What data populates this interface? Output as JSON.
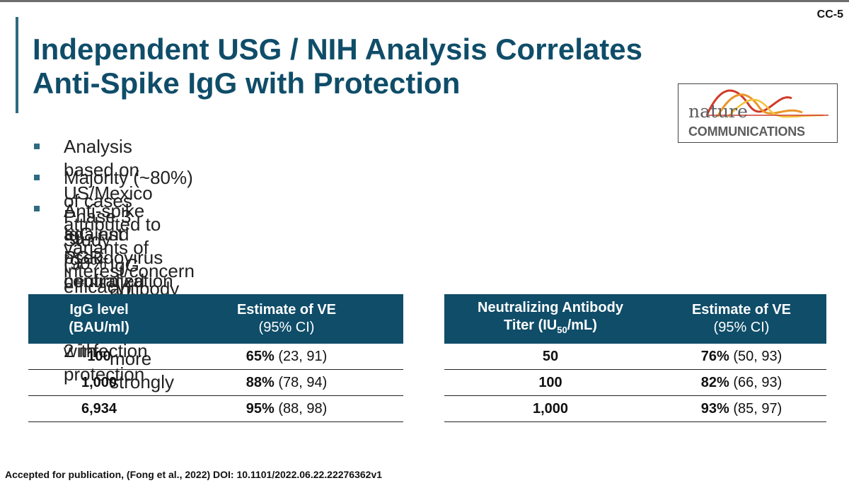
{
  "slide": {
    "id": "CC-5"
  },
  "title": {
    "line1": "Independent USG / NIH Analysis Correlates",
    "line2": "Anti-Spike IgG with Protection"
  },
  "logo": {
    "nature": "nature",
    "communications": "COMMUNICATIONS"
  },
  "bullets": [
    "Analysis based on US/Mexico Phase 3 Study (90% efficacy)",
    "Majority (~80%) of cases attributed to variants of interest/concern",
    "Anti-spike IgG and pseudovirus neutralization titers correlated with protection",
    "against PCR-confirmed symptomatic SARS-CoV-2 infection"
  ],
  "sub_bullet": "IgG antibody response correlated more strongly",
  "table_igg": {
    "h1_line1": "IgG level",
    "h1_line2": "(BAU/ml)",
    "h2_line1": "Estimate of VE",
    "h2_line2": "(95% CI)",
    "rows": [
      {
        "level": "100",
        "ve": "65%",
        "ci": " (23, 91)"
      },
      {
        "level": "1,000",
        "ve": "88%",
        "ci": " (78, 94)"
      },
      {
        "level": "6,934",
        "ve": "95%",
        "ci": " (88, 98)"
      }
    ]
  },
  "table_nab": {
    "h1_line1": "Neutralizing Antibody",
    "h1_line2_a": "Titer (IU",
    "h1_line2_sub": "50",
    "h1_line2_b": "/mL)",
    "h2_line1": "Estimate of VE",
    "h2_line2": "(95% CI)",
    "rows": [
      {
        "level": "50",
        "ve": "76%",
        "ci": " (50, 93)"
      },
      {
        "level": "100",
        "ve": "82%",
        "ci": " (66, 93)"
      },
      {
        "level": "1,000",
        "ve": "93%",
        "ci": " (85, 97)"
      }
    ]
  },
  "footer": "Accepted for publication, (Fong et al., 2022) DOI: 10.1101/2022.06.22.22276362v1",
  "colors": {
    "accent": "#0f4d69",
    "bullet": "#2e6b80"
  }
}
